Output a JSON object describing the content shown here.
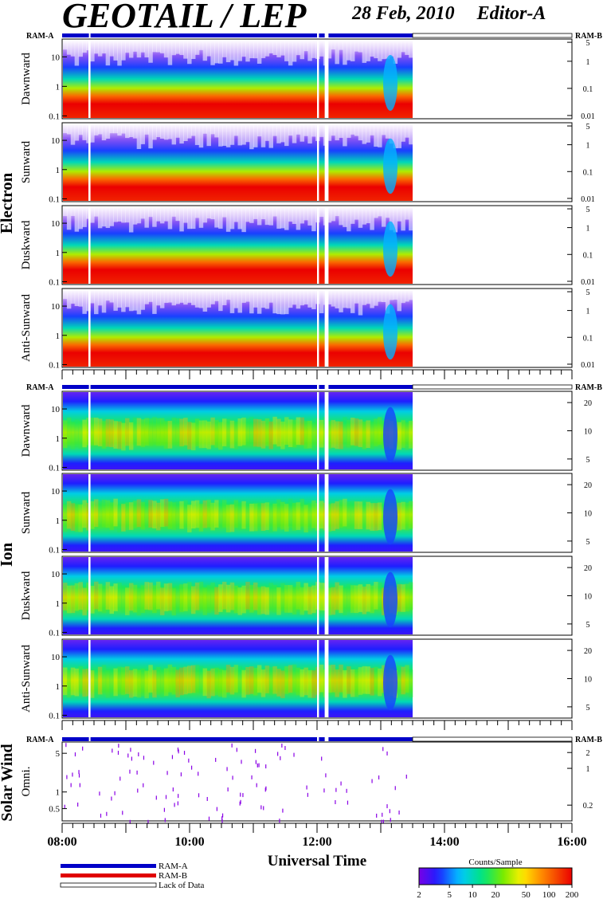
{
  "header": {
    "title": "GEOTAIL / LEP",
    "date": "28 Feb, 2010",
    "editor": "Editor-A"
  },
  "labels": {
    "ram_a": "RAM-A",
    "ram_b": "RAM-B",
    "lack": "Lack of Data",
    "electron": "Electron",
    "ion": "Ion",
    "solar_wind": "Solar Wind",
    "omni": "Omni.",
    "xlabel": "Universal Time",
    "colorbar_title": "Counts/Sample"
  },
  "colors": {
    "ram_a": "#0000c8",
    "ram_b": "#e00000",
    "lack": "#ffffff"
  },
  "chart_data": {
    "type": "heatmap",
    "x_range_hours": [
      8,
      16
    ],
    "x_ticks": [
      "08:00",
      "10:00",
      "12:00",
      "14:00",
      "16:00"
    ],
    "x_tick_values": [
      8,
      10,
      12,
      14,
      16
    ],
    "data_end_hour": 13.5,
    "data_gaps_hours": [
      [
        8.42,
        8.44
      ],
      [
        12.0,
        12.03
      ],
      [
        12.12,
        12.18
      ]
    ],
    "colorbar": {
      "ticks": [
        "2",
        "5",
        "10",
        "20",
        "50",
        "100",
        "200"
      ],
      "tick_values": [
        2,
        5,
        10,
        20,
        50,
        100,
        200
      ],
      "range": [
        2,
        200
      ],
      "scale": "log"
    },
    "panels": [
      {
        "group": "Electron",
        "name": "Dawnward",
        "left_ticks": [
          "10",
          "1",
          "0.1"
        ],
        "left_tick_values": [
          10,
          1,
          0.1
        ],
        "left_range": [
          0.08,
          40
        ],
        "right_ticks": [
          "5",
          "1",
          "0.1",
          "0.01"
        ],
        "right_tick_values": [
          5,
          1,
          0.1,
          0.01
        ]
      },
      {
        "group": "Electron",
        "name": "Sunward",
        "left_ticks": [
          "10",
          "1",
          "0.1"
        ],
        "left_tick_values": [
          10,
          1,
          0.1
        ],
        "left_range": [
          0.08,
          40
        ],
        "right_ticks": [
          "5",
          "1",
          "0.1",
          "0.01"
        ],
        "right_tick_values": [
          5,
          1,
          0.1,
          0.01
        ]
      },
      {
        "group": "Electron",
        "name": "Duskward",
        "left_ticks": [
          "10",
          "1",
          "0.1"
        ],
        "left_tick_values": [
          10,
          1,
          0.1
        ],
        "left_range": [
          0.08,
          40
        ],
        "right_ticks": [
          "5",
          "1",
          "0.1",
          "0.01"
        ],
        "right_tick_values": [
          5,
          1,
          0.1,
          0.01
        ]
      },
      {
        "group": "Electron",
        "name": "Anti-Sunward",
        "left_ticks": [
          "10",
          "1",
          "0.1"
        ],
        "left_tick_values": [
          10,
          1,
          0.1
        ],
        "left_range": [
          0.08,
          40
        ],
        "right_ticks": [
          "5",
          "1",
          "0.1",
          "0.01"
        ],
        "right_tick_values": [
          5,
          1,
          0.1,
          0.01
        ]
      },
      {
        "group": "Ion",
        "name": "Dawnward",
        "left_ticks": [
          "10",
          "1",
          "0.1"
        ],
        "left_tick_values": [
          10,
          1,
          0.1
        ],
        "left_range": [
          0.08,
          40
        ],
        "right_ticks": [
          "20",
          "10",
          "5"
        ],
        "right_tick_values": [
          20,
          10,
          5
        ]
      },
      {
        "group": "Ion",
        "name": "Sunward",
        "left_ticks": [
          "10",
          "1",
          "0.1"
        ],
        "left_tick_values": [
          10,
          1,
          0.1
        ],
        "left_range": [
          0.08,
          40
        ],
        "right_ticks": [
          "20",
          "10",
          "5"
        ],
        "right_tick_values": [
          20,
          10,
          5
        ]
      },
      {
        "group": "Ion",
        "name": "Duskward",
        "left_ticks": [
          "10",
          "1",
          "0.1"
        ],
        "left_tick_values": [
          10,
          1,
          0.1
        ],
        "left_range": [
          0.08,
          40
        ],
        "right_ticks": [
          "20",
          "10",
          "5"
        ],
        "right_tick_values": [
          20,
          10,
          5
        ]
      },
      {
        "group": "Ion",
        "name": "Anti-Sunward",
        "left_ticks": [
          "10",
          "1",
          "0.1"
        ],
        "left_tick_values": [
          10,
          1,
          0.1
        ],
        "left_range": [
          0.08,
          40
        ],
        "right_ticks": [
          "20",
          "10",
          "5"
        ],
        "right_tick_values": [
          20,
          10,
          5
        ]
      },
      {
        "group": "Solar Wind",
        "name": "Omni.",
        "left_ticks": [
          "5",
          "1",
          "0.5"
        ],
        "left_tick_values": [
          5,
          1,
          0.5
        ],
        "left_range": [
          0.3,
          8
        ],
        "right_ticks": [
          "2",
          "1",
          "0.2"
        ],
        "right_tick_values": [
          2,
          1,
          0.2
        ]
      }
    ]
  }
}
